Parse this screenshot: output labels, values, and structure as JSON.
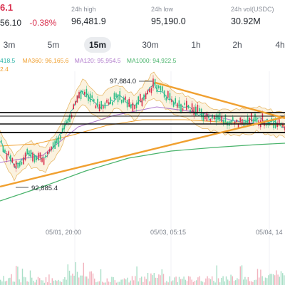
{
  "ticker": {
    "last_price_partial": "6.1",
    "change_abs_partial": "56.10",
    "change_pct": "-0.38%"
  },
  "stats": {
    "high_label": "24h high",
    "high_value": "96,481.9",
    "low_label": "24h low",
    "low_value": "95,190.0",
    "vol_label": "24h vol(USDC)",
    "vol_value": "30.92M"
  },
  "intervals": [
    "3m",
    "5m",
    "15m",
    "30m",
    "1h",
    "2h",
    "4h"
  ],
  "active_interval": "15m",
  "ma": {
    "ma_first_partial": "418.5",
    "ma360": "MA360: 96,165.6",
    "ma120": "MA120: 95,954.5",
    "ma1000": "MA1000: 94,922.5",
    "second_row_partial": "2.4"
  },
  "chart": {
    "high_marker": "97,884.0",
    "low_marker": "92,885.4",
    "x_labels": [
      "05/01, 20:00",
      "05/03, 05:15",
      "05/04, 14"
    ]
  },
  "colors": {
    "down": "#d9304e",
    "ma_teal": "#2bb3a6",
    "ma_orange": "#f0a030",
    "ma_purple": "#b07acc",
    "ma_green": "#49b36b",
    "trendline": "#f0a030"
  }
}
